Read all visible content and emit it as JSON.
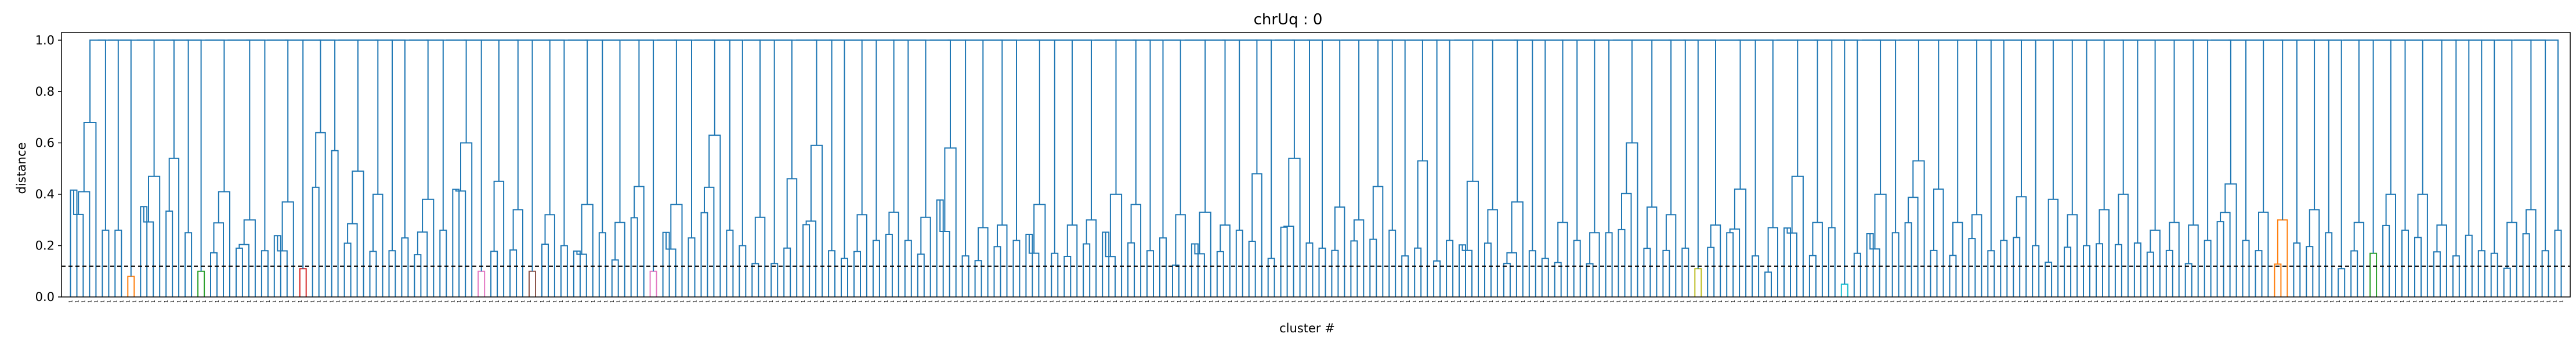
{
  "chart_data": {
    "type": "dendrogram",
    "title": "chrUq : 0",
    "xlabel": "cluster #",
    "ylabel": "distance",
    "ylim": [
      0,
      1.03
    ],
    "yticks": [
      "0.0",
      "0.2",
      "0.4",
      "0.6",
      "0.8",
      "1.0"
    ],
    "threshold": 0.12,
    "threshold_style": "dashed",
    "root_height": 1.0,
    "leaf_label": "1",
    "grid": false,
    "subtree_heights": [
      0.68,
      0.26,
      0.26,
      0.08,
      0.47,
      0.54,
      0.25,
      0.1,
      0.41,
      0.3,
      0.18,
      0.37,
      0.11,
      0.64,
      0.57,
      0.49,
      0.4,
      0.18,
      0.23,
      0.38,
      0.26,
      0.6,
      0.1,
      0.45,
      0.34,
      0.1,
      0.32,
      0.2,
      0.36,
      0.25,
      0.29,
      0.43,
      0.1,
      0.36,
      0.23,
      0.63,
      0.26,
      0.2,
      0.31,
      0.13,
      0.46,
      0.59,
      0.18,
      0.15,
      0.32,
      0.22,
      0.33,
      0.22,
      0.31,
      0.58,
      0.16,
      0.27,
      0.28,
      0.22,
      0.36,
      0.17,
      0.28,
      0.3,
      0.4,
      0.36,
      0.18,
      0.23,
      0.32,
      0.33,
      0.28,
      0.26,
      0.48,
      0.15,
      0.54,
      0.21,
      0.19,
      0.35,
      0.3,
      0.43,
      0.26,
      0.16,
      0.53,
      0.14,
      0.22,
      0.45,
      0.34,
      0.37,
      0.18,
      0.15,
      0.29,
      0.22,
      0.25,
      0.25,
      0.6,
      0.35,
      0.32,
      0.19,
      0.11,
      0.28,
      0.42,
      0.16,
      0.27,
      0.47,
      0.29,
      0.27,
      0.05,
      0.17,
      0.4,
      0.25,
      0.53,
      0.42,
      0.29,
      0.32,
      0.18,
      0.22,
      0.39,
      0.2,
      0.38,
      0.32,
      0.2,
      0.34,
      0.4,
      0.21,
      0.26,
      0.29,
      0.28,
      0.22,
      0.44,
      0.22,
      0.33,
      0.3,
      0.21,
      0.34,
      0.25,
      0.11,
      0.29,
      0.17,
      0.4,
      0.26,
      0.4,
      0.28,
      0.16,
      0.24,
      0.18,
      0.17,
      0.29,
      0.34,
      0.18,
      0.26
    ],
    "leaf_counts": [
      5,
      2,
      2,
      2,
      4,
      3,
      2,
      2,
      4,
      4,
      2,
      4,
      2,
      3,
      2,
      4,
      3,
      2,
      2,
      4,
      2,
      4,
      2,
      3,
      3,
      2,
      3,
      2,
      4,
      2,
      3,
      3,
      2,
      4,
      2,
      4,
      2,
      2,
      3,
      2,
      3,
      4,
      2,
      2,
      3,
      2,
      3,
      2,
      3,
      4,
      2,
      3,
      3,
      2,
      4,
      2,
      3,
      3,
      4,
      3,
      2,
      2,
      3,
      4,
      3,
      2,
      3,
      2,
      4,
      2,
      2,
      3,
      3,
      3,
      2,
      2,
      3,
      2,
      2,
      4,
      3,
      4,
      2,
      2,
      3,
      2,
      3,
      2,
      4,
      3,
      3,
      2,
      2,
      3,
      4,
      2,
      3,
      4,
      3,
      2,
      2,
      2,
      4,
      2,
      4,
      3,
      3,
      3,
      2,
      2,
      3,
      2,
      3,
      3,
      2,
      3,
      3,
      2,
      3,
      3,
      3,
      2,
      4,
      2,
      3,
      3,
      2,
      3,
      2,
      2,
      3,
      2,
      3,
      2,
      3,
      3,
      2,
      2,
      2,
      2,
      3,
      3,
      2,
      2
    ],
    "link_colors": {
      "default": "#1f77b4",
      "orange": "#ff7f0e",
      "green": "#2ca02c",
      "red": "#d62728",
      "pink": "#e377c2",
      "teal": "#17becf",
      "olive": "#bcbd22",
      "brown": "#8c564b"
    },
    "colored_subtrees": {
      "3": "orange",
      "7": "green",
      "12": "red",
      "22": "pink",
      "25": "brown",
      "32": "pink",
      "92": "olive",
      "100": "teal",
      "125": "orange",
      "131": "green"
    }
  }
}
